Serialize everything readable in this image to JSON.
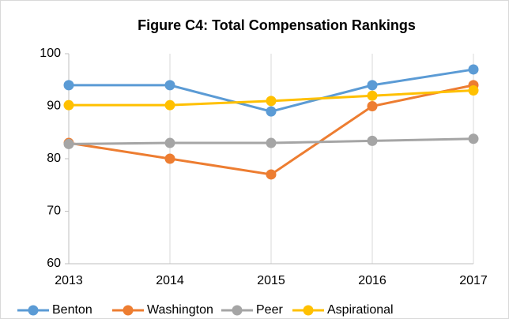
{
  "chart_data": {
    "type": "line",
    "title": "Figure C4: Total Compensation Rankings",
    "categories": [
      "2013",
      "2014",
      "2015",
      "2016",
      "2017"
    ],
    "series": [
      {
        "name": "Benton",
        "color": "#5b9bd5",
        "values": [
          94,
          94,
          89,
          94,
          97
        ]
      },
      {
        "name": "Washington",
        "color": "#ed7d31",
        "values": [
          83,
          80,
          77,
          90,
          94
        ]
      },
      {
        "name": "Peer",
        "color": "#a5a5a5",
        "values": [
          82.8,
          83,
          83,
          83.4,
          83.8
        ]
      },
      {
        "name": "Aspirational",
        "color": "#ffc000",
        "values": [
          90.2,
          90.2,
          91,
          92,
          93
        ]
      }
    ],
    "ylim": [
      60,
      100
    ],
    "yticks": [
      60,
      70,
      80,
      90,
      100
    ],
    "xgrid": true,
    "legend": "bottom"
  }
}
